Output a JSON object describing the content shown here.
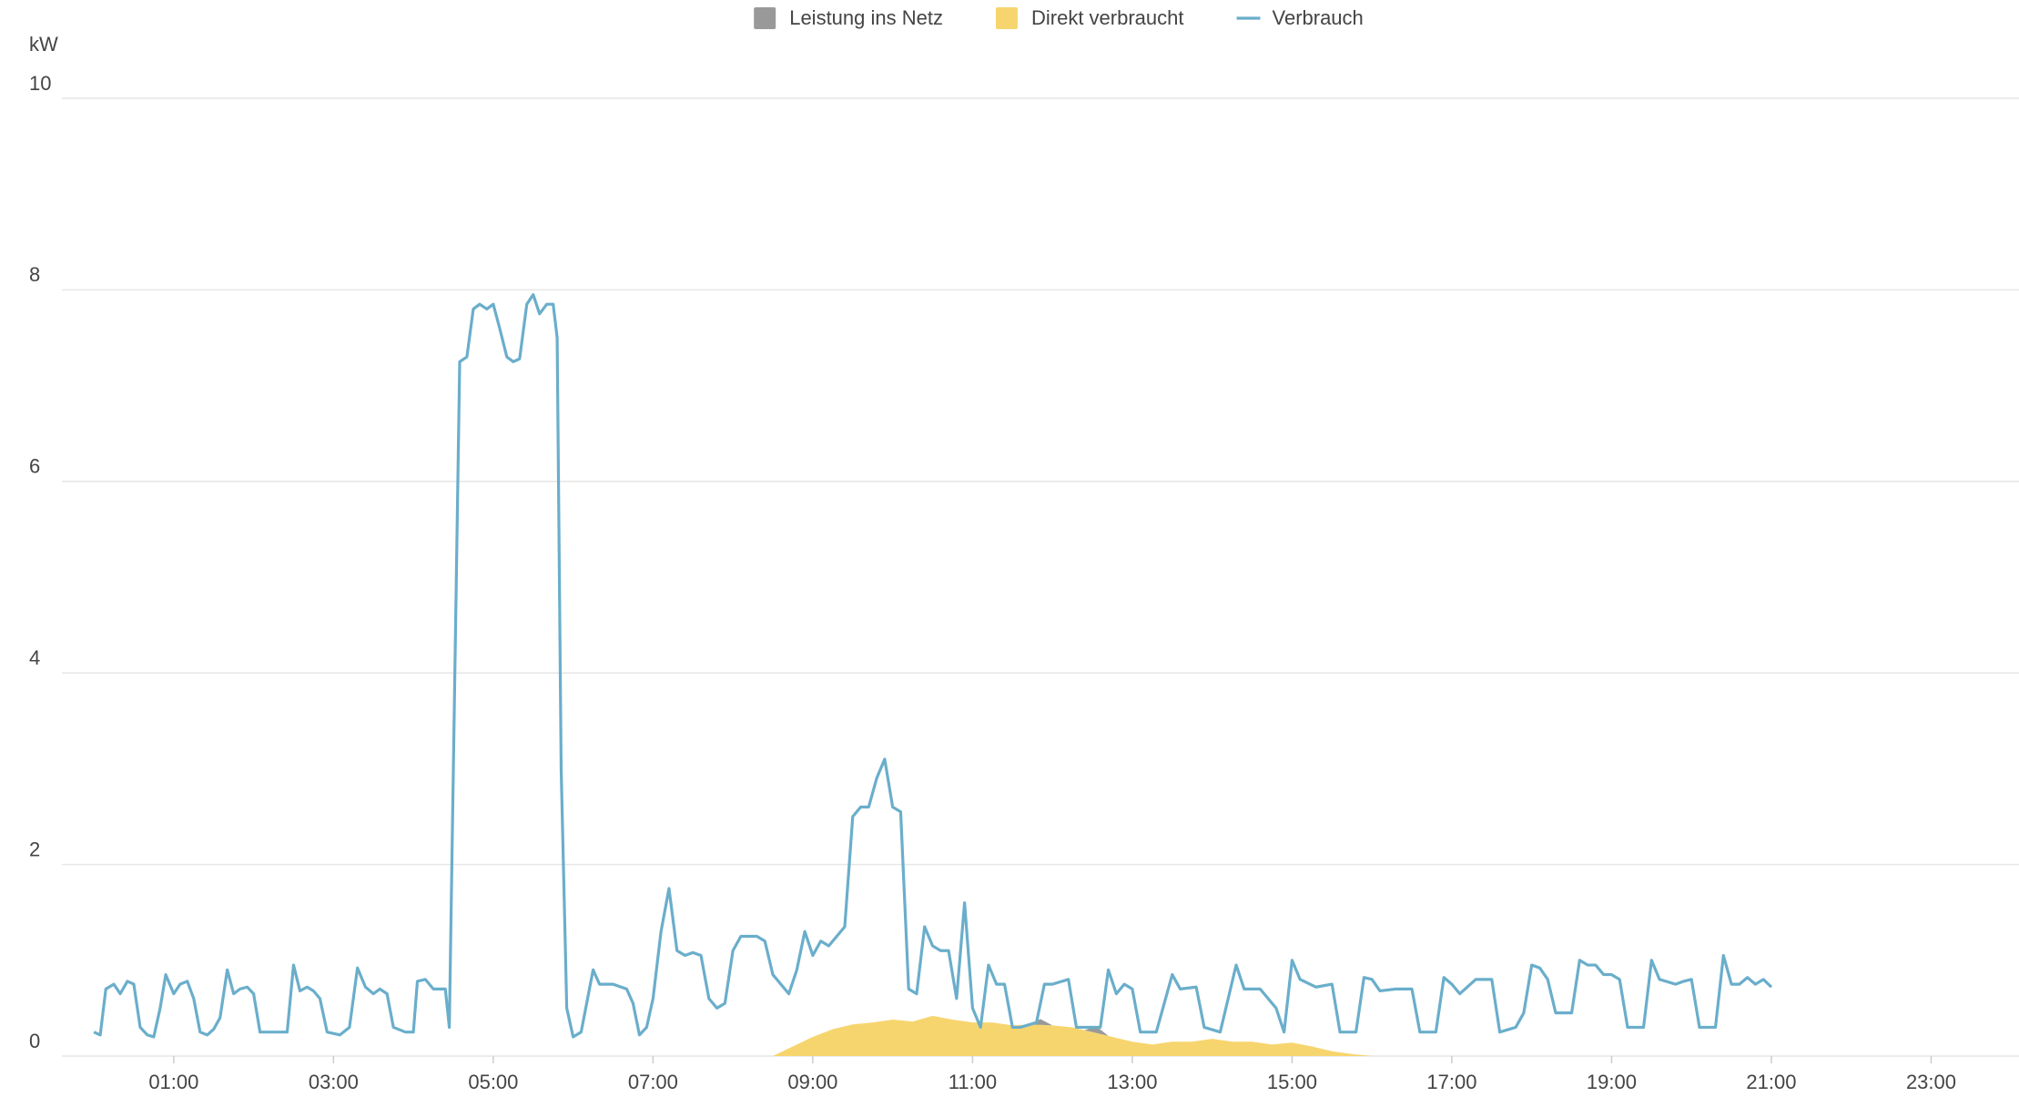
{
  "chart_data": {
    "type": "line",
    "y_unit": "kW",
    "grid": true,
    "stacked_areas": true,
    "legend": "top",
    "xlim": [
      -0.4,
      24.1
    ],
    "xticks": [
      {
        "value": 1,
        "label": "01:00"
      },
      {
        "value": 3,
        "label": "03:00"
      },
      {
        "value": 5,
        "label": "05:00"
      },
      {
        "value": 7,
        "label": "07:00"
      },
      {
        "value": 9,
        "label": "09:00"
      },
      {
        "value": 11,
        "label": "11:00"
      },
      {
        "value": 13,
        "label": "13:00"
      },
      {
        "value": 15,
        "label": "15:00"
      },
      {
        "value": 17,
        "label": "17:00"
      },
      {
        "value": 19,
        "label": "19:00"
      },
      {
        "value": 21,
        "label": "21:00"
      },
      {
        "value": 23,
        "label": "23:00"
      }
    ],
    "ylim": [
      0,
      10
    ],
    "yticks": [
      0,
      2,
      4,
      6,
      8,
      10
    ],
    "series": [
      {
        "name": "Leistung ins Netz",
        "type": "area",
        "color": "#999999",
        "x": [
          11.7,
          11.85,
          12.0,
          12.4,
          12.55,
          12.7
        ],
        "values": [
          0,
          0.06,
          0,
          0,
          0.07,
          0
        ]
      },
      {
        "name": "Direkt verbraucht",
        "type": "area",
        "color": "#f7d56e",
        "x": [
          8.5,
          8.75,
          9.0,
          9.25,
          9.5,
          9.75,
          10.0,
          10.25,
          10.5,
          10.75,
          11.0,
          11.25,
          11.5,
          11.75,
          12.0,
          12.25,
          12.5,
          12.75,
          13.0,
          13.25,
          13.5,
          13.75,
          14.0,
          14.25,
          14.5,
          14.75,
          15.0,
          15.25,
          15.5,
          15.75,
          16.0
        ],
        "values": [
          0,
          0.1,
          0.2,
          0.28,
          0.33,
          0.35,
          0.38,
          0.36,
          0.42,
          0.38,
          0.35,
          0.35,
          0.32,
          0.33,
          0.32,
          0.3,
          0.25,
          0.2,
          0.15,
          0.12,
          0.15,
          0.15,
          0.18,
          0.15,
          0.15,
          0.12,
          0.14,
          0.1,
          0.05,
          0.02,
          0
        ]
      },
      {
        "name": "Verbrauch",
        "type": "line",
        "color": "#6aaecb",
        "x": [
          0.0,
          0.08,
          0.15,
          0.25,
          0.33,
          0.42,
          0.5,
          0.58,
          0.67,
          0.75,
          0.83,
          0.9,
          1.0,
          1.08,
          1.17,
          1.25,
          1.33,
          1.42,
          1.5,
          1.58,
          1.67,
          1.75,
          1.83,
          1.92,
          2.0,
          2.08,
          2.25,
          2.42,
          2.5,
          2.58,
          2.67,
          2.75,
          2.83,
          2.92,
          3.08,
          3.2,
          3.3,
          3.4,
          3.5,
          3.58,
          3.67,
          3.75,
          3.9,
          4.0,
          4.05,
          4.15,
          4.25,
          4.4,
          4.45,
          4.58,
          4.67,
          4.75,
          4.83,
          4.92,
          5.0,
          5.08,
          5.17,
          5.25,
          5.33,
          5.42,
          5.5,
          5.58,
          5.67,
          5.75,
          5.8,
          5.85,
          5.92,
          6.0,
          6.1,
          6.25,
          6.33,
          6.5,
          6.67,
          6.75,
          6.83,
          6.92,
          7.0,
          7.1,
          7.2,
          7.3,
          7.4,
          7.5,
          7.6,
          7.7,
          7.8,
          7.9,
          8.0,
          8.1,
          8.2,
          8.3,
          8.4,
          8.5,
          8.6,
          8.7,
          8.8,
          8.9,
          9.0,
          9.1,
          9.2,
          9.3,
          9.4,
          9.5,
          9.6,
          9.7,
          9.8,
          9.9,
          10.0,
          10.1,
          10.2,
          10.3,
          10.4,
          10.5,
          10.6,
          10.7,
          10.8,
          10.9,
          11.0,
          11.1,
          11.2,
          11.3,
          11.4,
          11.5,
          11.6,
          11.8,
          11.9,
          12.0,
          12.2,
          12.3,
          12.5,
          12.6,
          12.7,
          12.8,
          12.9,
          13.0,
          13.1,
          13.3,
          13.5,
          13.6,
          13.8,
          13.9,
          14.1,
          14.3,
          14.4,
          14.6,
          14.8,
          14.9,
          15.0,
          15.1,
          15.3,
          15.5,
          15.6,
          15.8,
          15.9,
          16.0,
          16.1,
          16.3,
          16.5,
          16.6,
          16.8,
          16.9,
          17.0,
          17.1,
          17.3,
          17.5,
          17.6,
          17.8,
          17.9,
          18.0,
          18.1,
          18.2,
          18.3,
          18.5,
          18.6,
          18.7,
          18.8,
          18.9,
          19.0,
          19.1,
          19.2,
          19.4,
          19.5,
          19.6,
          19.8,
          19.9,
          20.0,
          20.1,
          20.3,
          20.4,
          20.5,
          20.6,
          20.7,
          20.8,
          20.9,
          21.0
        ],
        "values": [
          0.25,
          0.22,
          0.7,
          0.75,
          0.65,
          0.78,
          0.75,
          0.3,
          0.22,
          0.2,
          0.5,
          0.85,
          0.65,
          0.75,
          0.78,
          0.6,
          0.25,
          0.22,
          0.28,
          0.4,
          0.9,
          0.65,
          0.7,
          0.72,
          0.65,
          0.25,
          0.25,
          0.25,
          0.95,
          0.68,
          0.72,
          0.68,
          0.6,
          0.25,
          0.22,
          0.3,
          0.92,
          0.72,
          0.65,
          0.7,
          0.65,
          0.3,
          0.25,
          0.25,
          0.78,
          0.8,
          0.7,
          0.7,
          0.3,
          7.25,
          7.3,
          7.8,
          7.85,
          7.8,
          7.85,
          7.6,
          7.3,
          7.25,
          7.28,
          7.85,
          7.95,
          7.75,
          7.85,
          7.85,
          7.5,
          3.0,
          0.5,
          0.2,
          0.25,
          0.9,
          0.75,
          0.75,
          0.7,
          0.55,
          0.22,
          0.3,
          0.6,
          1.3,
          1.75,
          1.1,
          1.05,
          1.08,
          1.05,
          0.6,
          0.5,
          0.55,
          1.1,
          1.25,
          1.25,
          1.25,
          1.2,
          0.85,
          0.75,
          0.65,
          0.9,
          1.3,
          1.05,
          1.2,
          1.15,
          1.25,
          1.35,
          2.5,
          2.6,
          2.6,
          2.9,
          3.1,
          2.6,
          2.55,
          0.7,
          0.65,
          1.35,
          1.15,
          1.1,
          1.1,
          0.6,
          1.6,
          0.5,
          0.3,
          0.95,
          0.75,
          0.75,
          0.3,
          0.3,
          0.35,
          0.75,
          0.75,
          0.8,
          0.3,
          0.3,
          0.3,
          0.9,
          0.65,
          0.75,
          0.7,
          0.25,
          0.25,
          0.85,
          0.7,
          0.72,
          0.3,
          0.25,
          0.95,
          0.7,
          0.7,
          0.5,
          0.25,
          1.0,
          0.8,
          0.72,
          0.75,
          0.25,
          0.25,
          0.82,
          0.8,
          0.68,
          0.7,
          0.7,
          0.25,
          0.25,
          0.82,
          0.75,
          0.65,
          0.8,
          0.8,
          0.25,
          0.3,
          0.45,
          0.95,
          0.92,
          0.8,
          0.45,
          0.45,
          1.0,
          0.95,
          0.95,
          0.85,
          0.85,
          0.8,
          0.3,
          0.3,
          1.0,
          0.8,
          0.75,
          0.78,
          0.8,
          0.3,
          0.3,
          1.05,
          0.75,
          0.75,
          0.82,
          0.75,
          0.8,
          0.72
        ]
      }
    ]
  }
}
